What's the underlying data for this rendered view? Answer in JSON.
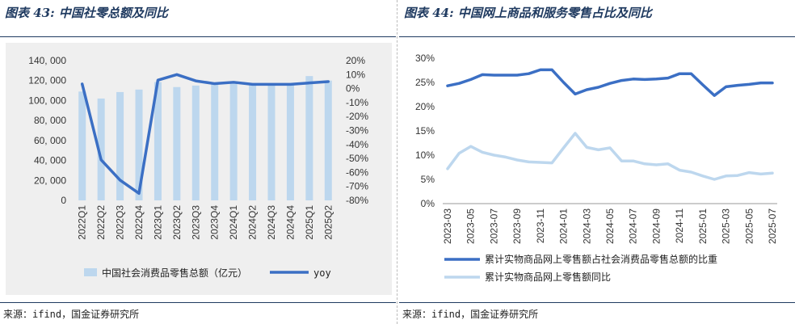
{
  "left": {
    "title": "图表 43: 中国社零总额及同比",
    "source": "来源：ifind，国金证券研究所",
    "chart_data": {
      "type": "bar",
      "categories": [
        "2022Q1",
        "2022Q2",
        "2022Q3",
        "2022Q4",
        "2023Q1",
        "2023Q2",
        "2023Q3",
        "2023Q4",
        "2024Q1",
        "2024Q2",
        "2024Q3",
        "2024Q4",
        "2025Q1",
        "2025Q2"
      ],
      "series": [
        {
          "name": "中国社会消费品零售总额（亿元）",
          "type": "bar",
          "axis": "left",
          "color": "#bdd7ee",
          "values": [
            109000,
            102000,
            108500,
            111000,
            118500,
            113500,
            115000,
            117000,
            118000,
            116000,
            115000,
            116000,
            124500,
            120000
          ]
        },
        {
          "name": "yoy",
          "type": "line",
          "axis": "right",
          "color": "#3b6fc4",
          "values": [
            3.3,
            -51,
            -65.5,
            -75,
            6,
            10,
            5.5,
            3.5,
            4.5,
            3,
            3,
            3,
            4,
            5
          ]
        }
      ],
      "yticks_left": [
        "0",
        "20, 000",
        "40, 000",
        "60, 000",
        "80, 000",
        "100, 000",
        "120, 000",
        "140, 000"
      ],
      "ylim_left": [
        0,
        140000
      ],
      "yticks_right": [
        "-80%",
        "-70%",
        "-60%",
        "-50%",
        "-40%",
        "-30%",
        "-20%",
        "-10%",
        "0%",
        "10%",
        "20%"
      ],
      "ylim_right": [
        -80,
        20
      ],
      "grid": false,
      "legend_position": "bottom"
    }
  },
  "right": {
    "title": "图表 44: 中国网上商品和服务零售占比及同比",
    "source": "来源：ifind，国金证券研究所",
    "chart_data": {
      "type": "line",
      "x": [
        "2023-03",
        "2023-04",
        "2023-05",
        "2023-06",
        "2023-07",
        "2023-08",
        "2023-09",
        "2023-10",
        "2023-11",
        "2023-12",
        "2024-01",
        "2024-02",
        "2024-03",
        "2024-04",
        "2024-05",
        "2024-06",
        "2024-07",
        "2024-08",
        "2024-09",
        "2024-10",
        "2024-11",
        "2024-12",
        "2025-01",
        "2025-02",
        "2025-03",
        "2025-04",
        "2025-05",
        "2025-06",
        "2025-07"
      ],
      "xticks": [
        "2023-03",
        "2023-05",
        "2023-07",
        "2023-09",
        "2023-11",
        "2024-01",
        "2024-03",
        "2024-05",
        "2024-07",
        "2024-09",
        "2024-11",
        "2025-01",
        "2025-03",
        "2025-05",
        "2025-07"
      ],
      "series": [
        {
          "name": "累计实物商品网上零售额占社会消费品零售总额的比重",
          "color": "#3b6fc4",
          "values": [
            24.3,
            24.8,
            25.6,
            26.6,
            26.5,
            26.5,
            26.5,
            26.8,
            27.6,
            27.6,
            25,
            22.6,
            23.5,
            24,
            24.8,
            25.4,
            25.7,
            25.6,
            25.7,
            25.9,
            26.8,
            26.8,
            24.5,
            22.3,
            24.1,
            24.4,
            24.6,
            24.9,
            24.9
          ]
        },
        {
          "name": "累计实物商品网上零售额同比",
          "color": "#bdd7ee",
          "values": [
            7.2,
            10.4,
            11.8,
            10.6,
            10,
            9.6,
            9,
            8.6,
            8.5,
            8.4,
            11.5,
            14.5,
            11.6,
            11.1,
            11.5,
            8.8,
            8.8,
            8.2,
            8,
            8.2,
            6.9,
            6.5,
            5.7,
            5,
            5.7,
            5.8,
            6.4,
            6.1,
            6.3
          ]
        }
      ],
      "yticks": [
        "0%",
        "5%",
        "10%",
        "15%",
        "20%",
        "25%",
        "30%"
      ],
      "ylim": [
        0,
        30
      ],
      "grid": false,
      "legend_position": "bottom"
    }
  }
}
